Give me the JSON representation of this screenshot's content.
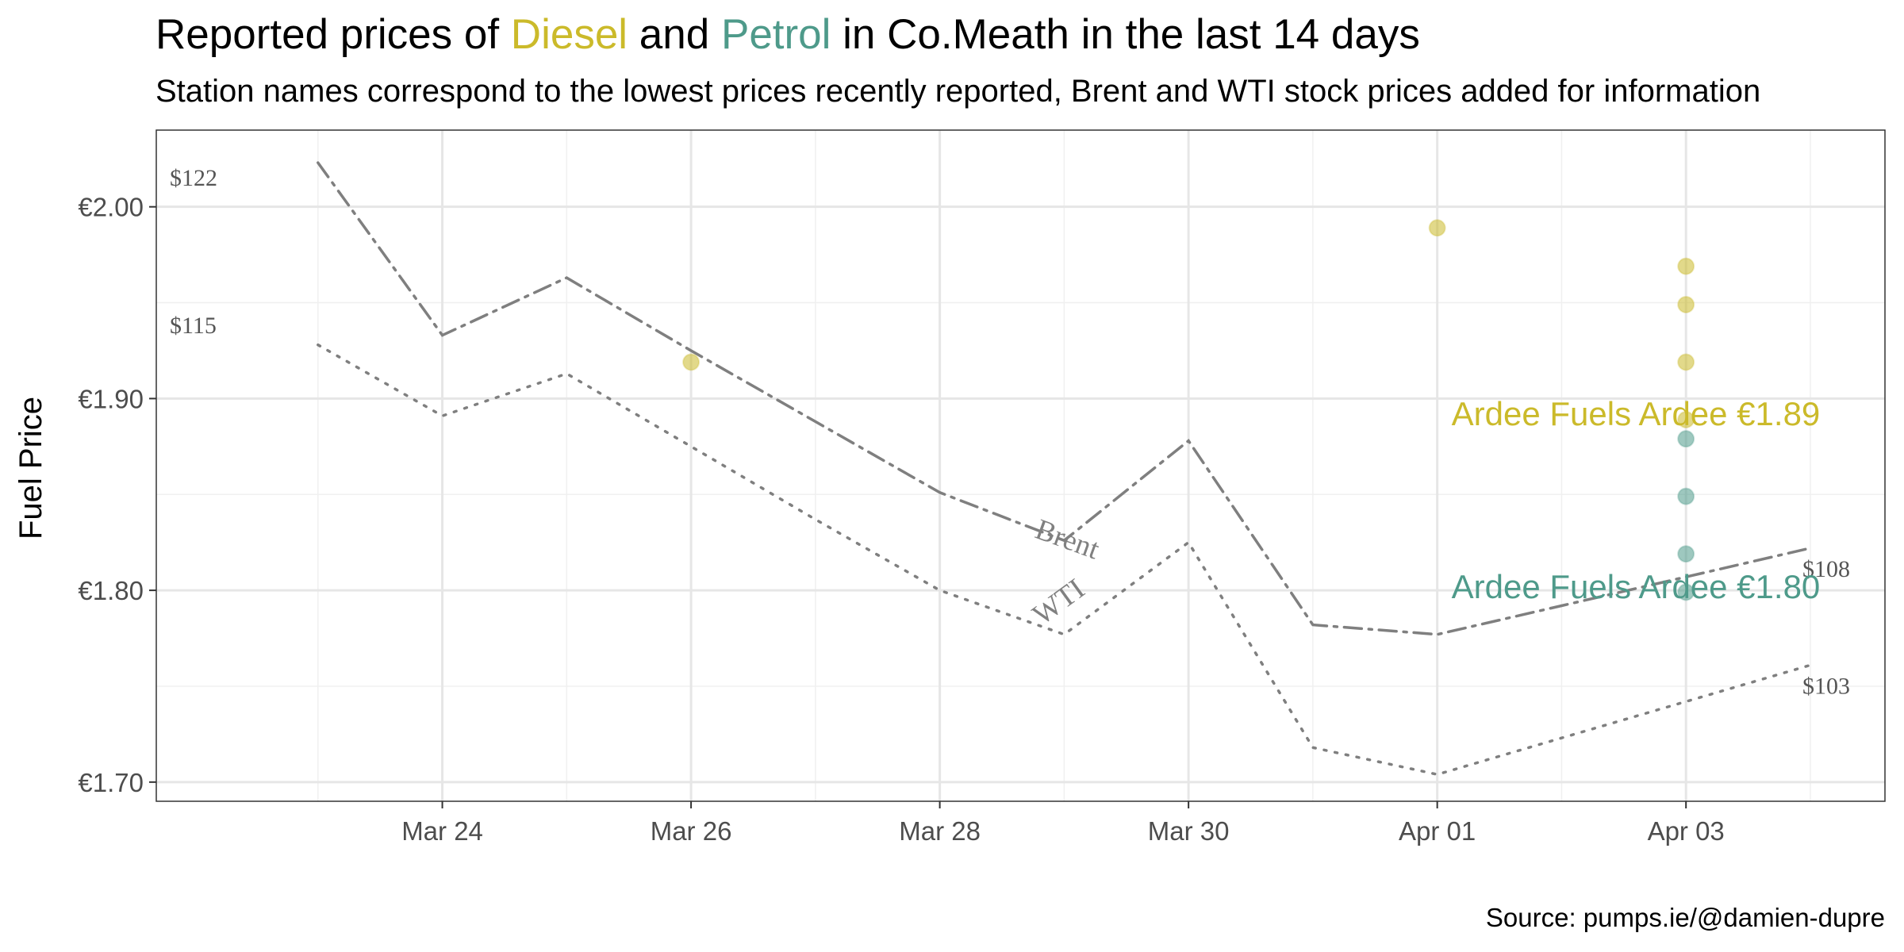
{
  "title": {
    "prefix": "Reported prices of ",
    "diesel": "Diesel",
    "and": " and ",
    "petrol": "Petrol",
    "suffix": " in Co.Meath in the last 14 days"
  },
  "subtitle": "Station names correspond to the lowest prices recently reported, Brent and WTI stock prices added for information",
  "caption": "Source: pumps.ie/@damien-dupre",
  "colors": {
    "diesel": "#cbba2a",
    "petrol": "#4e9a8a",
    "oil": "#7f7f7f"
  },
  "chart_data": {
    "type": "scatter",
    "title": "Reported prices of Diesel and Petrol in Co.Meath in the last 14 days",
    "ylabel": "Fuel Price",
    "xlabel": "",
    "x_start": "2022-03-22",
    "xlim": [
      "2022-03-22",
      "2022-04-04"
    ],
    "ylim": [
      1.69,
      2.04
    ],
    "x_ticks": [
      {
        "date": "2022-03-24",
        "label": "Mar 24"
      },
      {
        "date": "2022-03-26",
        "label": "Mar 26"
      },
      {
        "date": "2022-03-28",
        "label": "Mar 28"
      },
      {
        "date": "2022-03-30",
        "label": "Mar 30"
      },
      {
        "date": "2022-04-01",
        "label": "Apr 01"
      },
      {
        "date": "2022-04-03",
        "label": "Apr 03"
      }
    ],
    "y_ticks": [
      {
        "value": 1.7,
        "label": "€1.70"
      },
      {
        "value": 1.8,
        "label": "€1.80"
      },
      {
        "value": 1.9,
        "label": "€1.90"
      },
      {
        "value": 2.0,
        "label": "€2.00"
      }
    ],
    "grid": true,
    "series": [
      {
        "name": "Diesel",
        "kind": "points",
        "points": [
          {
            "x": "2022-03-26",
            "y": 1.919
          },
          {
            "x": "2022-04-01",
            "y": 1.989
          },
          {
            "x": "2022-04-03",
            "y": 1.969
          },
          {
            "x": "2022-04-03",
            "y": 1.949
          },
          {
            "x": "2022-04-03",
            "y": 1.919
          },
          {
            "x": "2022-04-03",
            "y": 1.889
          }
        ]
      },
      {
        "name": "Petrol",
        "kind": "points",
        "points": [
          {
            "x": "2022-04-03",
            "y": 1.879
          },
          {
            "x": "2022-04-03",
            "y": 1.849
          },
          {
            "x": "2022-04-03",
            "y": 1.819
          },
          {
            "x": "2022-04-03",
            "y": 1.799
          }
        ]
      },
      {
        "name": "Brent",
        "kind": "line",
        "dash": "dashdot",
        "points": [
          {
            "x": "2022-03-23",
            "y": 2.023
          },
          {
            "x": "2022-03-24",
            "y": 1.933
          },
          {
            "x": "2022-03-25",
            "y": 1.963
          },
          {
            "x": "2022-03-26",
            "y": 1.925
          },
          {
            "x": "2022-03-27",
            "y": 1.888
          },
          {
            "x": "2022-03-28",
            "y": 1.851
          },
          {
            "x": "2022-03-29",
            "y": 1.826
          },
          {
            "x": "2022-03-30",
            "y": 1.878
          },
          {
            "x": "2022-03-31",
            "y": 1.782
          },
          {
            "x": "2022-04-01",
            "y": 1.777
          },
          {
            "x": "2022-04-02",
            "y": 1.792
          },
          {
            "x": "2022-04-03",
            "y": 1.807
          },
          {
            "x": "2022-04-04",
            "y": 1.822
          }
        ]
      },
      {
        "name": "WTI",
        "kind": "line",
        "dash": "dotted",
        "points": [
          {
            "x": "2022-03-23",
            "y": 1.928
          },
          {
            "x": "2022-03-24",
            "y": 1.891
          },
          {
            "x": "2022-03-25",
            "y": 1.913
          },
          {
            "x": "2022-03-26",
            "y": 1.875
          },
          {
            "x": "2022-03-27",
            "y": 1.837
          },
          {
            "x": "2022-03-28",
            "y": 1.8
          },
          {
            "x": "2022-03-29",
            "y": 1.777
          },
          {
            "x": "2022-03-30",
            "y": 1.825
          },
          {
            "x": "2022-03-31",
            "y": 1.718
          },
          {
            "x": "2022-04-01",
            "y": 1.704
          },
          {
            "x": "2022-04-02",
            "y": 1.723
          },
          {
            "x": "2022-04-03",
            "y": 1.742
          },
          {
            "x": "2022-04-04",
            "y": 1.761
          }
        ]
      }
    ],
    "line_labels": [
      {
        "text": "Brent",
        "x": "2022-03-29",
        "y": 1.822,
        "angle": 20
      },
      {
        "text": "WTI",
        "x": "2022-03-29",
        "y": 1.79,
        "angle": -36
      }
    ],
    "price_labels": [
      {
        "text": "$122",
        "x": "2022-03-22",
        "y": 2.011,
        "anchor": "start"
      },
      {
        "text": "$115",
        "x": "2022-03-22",
        "y": 1.934,
        "anchor": "start"
      },
      {
        "text": "$108",
        "x": "2022-04-04",
        "y": 1.807,
        "anchor": "start"
      },
      {
        "text": "$103",
        "x": "2022-04-04",
        "y": 1.746,
        "anchor": "start"
      }
    ],
    "annotations": [
      {
        "text": "Ardee Fuels Ardee €1.89",
        "x": "2022-04-01",
        "y": 1.886,
        "series": "Diesel"
      },
      {
        "text": "Ardee Fuels Ardee €1.80",
        "x": "2022-04-01",
        "y": 1.796,
        "series": "Petrol"
      }
    ]
  }
}
